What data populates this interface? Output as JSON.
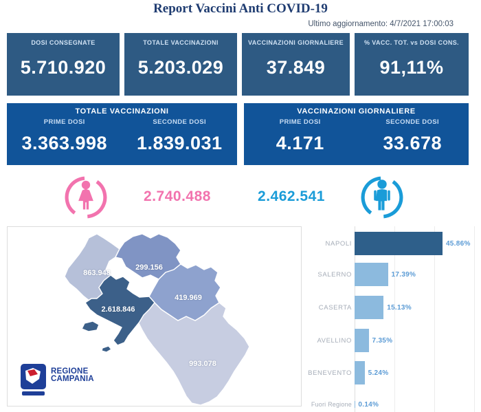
{
  "title": "Report Vaccini Anti COVID-19",
  "last_update": "Ultimo aggiornamento: 4/7/2021 17:00:03",
  "colors": {
    "kpi_bg": "#2e5a83",
    "panel_bg": "#115499",
    "female": "#f273ae",
    "male": "#1a9cd8",
    "value_text": "#5b9bd5",
    "label_text": "#a6adb8",
    "logo_blue": "#1e3f98",
    "logo_red": "#cc1f2f"
  },
  "kpis": [
    {
      "label": "DOSI CONSEGNATE",
      "value": "5.710.920"
    },
    {
      "label": "TOTALE VACCINAZIONI",
      "value": "5.203.029"
    },
    {
      "label": "VACCINAZIONI GIORNALIERE",
      "value": "37.849"
    },
    {
      "label": "% VACC. TOT. vs DOSI CONS.",
      "value": "91,11%"
    }
  ],
  "totals_panel": {
    "title": "TOTALE VACCINAZIONI",
    "cols": [
      {
        "label": "PRIME DOSI",
        "value": "3.363.998"
      },
      {
        "label": "SECONDE DOSI",
        "value": "1.839.031"
      }
    ]
  },
  "daily_panel": {
    "title": "VACCINAZIONI GIORNALIERE",
    "cols": [
      {
        "label": "PRIME DOSI",
        "value": "4.171"
      },
      {
        "label": "SECONDE DOSI",
        "value": "33.678"
      }
    ]
  },
  "gender": {
    "female_value": "2.740.488",
    "male_value": "2.462.541"
  },
  "map": {
    "logo_line1": "REGIONE",
    "logo_line2": "CAMPANIA",
    "provinces": [
      {
        "name": "caserta",
        "value": "863.948",
        "color": "#b6c0d9"
      },
      {
        "name": "benevento",
        "value": "299.156",
        "color": "#8094c4"
      },
      {
        "name": "avellino",
        "value": "419.969",
        "color": "#8ea2ce"
      },
      {
        "name": "napoli",
        "value": "2.618.846",
        "color": "#3c6089"
      },
      {
        "name": "salerno",
        "value": "993.078",
        "color": "#c7cde1"
      }
    ]
  },
  "chart_data": {
    "type": "bar",
    "orientation": "horizontal",
    "categories": [
      "NAPOLI",
      "SALERNO",
      "CASERTA",
      "AVELLINO",
      "BENEVENTO",
      "Fuori Regione"
    ],
    "values": [
      45.86,
      17.39,
      15.13,
      7.35,
      5.24,
      0.14
    ],
    "value_labels": [
      "45.86%",
      "17.39%",
      "15.13%",
      "7.35%",
      "5.24%",
      "0.14%"
    ],
    "unit": "%",
    "xlim": [
      0,
      50
    ],
    "bar_colors": [
      "#2e5f8a",
      "#8cbade",
      "#8cbade",
      "#8cbade",
      "#8cbade",
      "#8cbade"
    ],
    "title": "",
    "xlabel": "",
    "ylabel": "",
    "legend": false,
    "gridlines": "vertical-faint"
  }
}
